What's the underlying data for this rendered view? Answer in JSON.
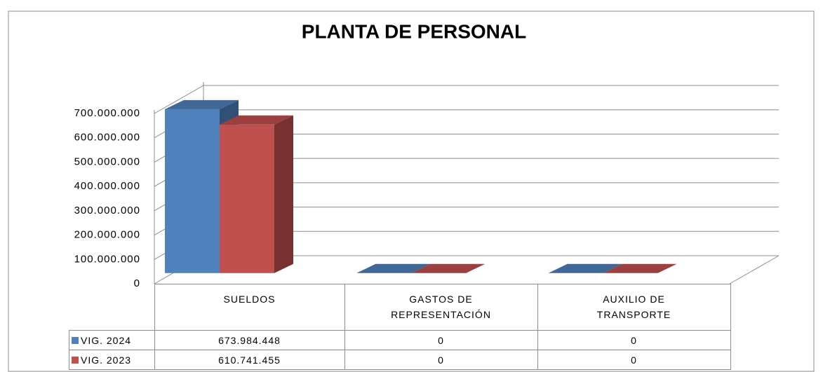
{
  "chart_data": {
    "type": "bar3d",
    "title": "PLANTA DE PERSONAL",
    "categories": [
      "SUELDOS",
      "GASTOS DE REPRESENTACIÓN",
      "AUXILIO DE TRANSPORTE"
    ],
    "series": [
      {
        "name": "VIG. 2024",
        "color": "#4f81bd",
        "values": [
          673984448,
          0,
          0
        ],
        "value_labels": [
          "673.984.448",
          "0",
          "0"
        ]
      },
      {
        "name": "VIG. 2023",
        "color": "#c0504d",
        "values": [
          610741455,
          0,
          0
        ],
        "value_labels": [
          "610.741.455",
          "0",
          "0"
        ]
      }
    ],
    "ylim": [
      0,
      700000000
    ],
    "yticks": [
      0,
      {
        "value": 100000000,
        "label": "100.000.000"
      },
      {
        "value": 200000000,
        "label": "200.000.000"
      },
      {
        "value": 300000000,
        "label": "300.000.000"
      },
      {
        "value": 400000000,
        "label": "400.000.000"
      },
      {
        "value": 500000000,
        "label": "500.000.000"
      },
      {
        "value": 600000000,
        "label": "600.000.000"
      },
      {
        "value": 700000000,
        "label": "700.000.000"
      }
    ],
    "grid": true
  }
}
